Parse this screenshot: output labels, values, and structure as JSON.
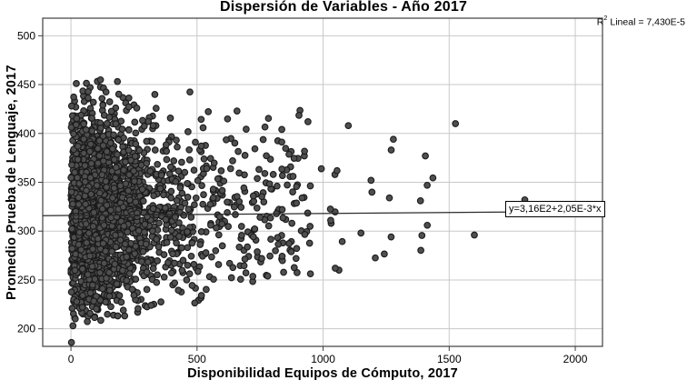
{
  "chart_data": {
    "type": "scatter",
    "title": "Dispersión de Variables - Año 2017",
    "xlabel": "Disponibilidad Equipos de Cómputo, 2017",
    "ylabel": "Promedio Prueba de Lenguaje, 2017",
    "x_ticks": [
      0,
      500,
      1000,
      1500,
      2000
    ],
    "y_ticks": [
      200,
      250,
      300,
      350,
      400,
      450,
      500
    ],
    "xlim": [
      -112,
      2108
    ],
    "ylim": [
      182,
      518
    ],
    "grid": true,
    "legend": "none",
    "marker": {
      "fill": "#4f4f4f",
      "stroke": "#1a1a1a",
      "radius": 3.3,
      "stroke_width": 1.1
    },
    "grid_color": "#c8c8c8",
    "frame_color": "#3f3f3f",
    "line_color": "#2b2b2b",
    "regression": {
      "intercept": 316,
      "slope": 0.00205,
      "equation_label": "y=3,16E2+2,05E-3*x"
    },
    "r2_annotation": {
      "prefix": "R",
      "sup": "2",
      "suffix": " Lineal = 7,430E-5"
    },
    "points": {
      "note": "Dense unlabeled cloud of ~2500 observations concentrated at x<300, y 230-430; spread narrows as x grows. Reproduced via seeded generator; distinctive isolated points listed in outliers.",
      "generator": {
        "seed": 2017,
        "count": 2500,
        "x_mixture": [
          {
            "w": 0.62,
            "type": "halfnormal",
            "sigma": 125,
            "min": 0,
            "max": 520
          },
          {
            "w": 0.27,
            "type": "exponential",
            "shift": 40,
            "mean": 200,
            "max": 1460
          },
          {
            "w": 0.104,
            "type": "uniform",
            "min": 250,
            "max": 950
          },
          {
            "w": 0.006,
            "type": "uniform",
            "min": 950,
            "max": 1460
          }
        ],
        "y": {
          "mean": 317,
          "sd": 50,
          "floor_base": 203,
          "floor_slope": 0.045,
          "ceil_base": 462,
          "ceil_slope": 0.04
        }
      },
      "outliers": [
        [
          1525,
          410
        ],
        [
          1800,
          332
        ],
        [
          1600,
          296
        ],
        [
          1413,
          306
        ],
        [
          1386,
          331
        ],
        [
          1270,
          383
        ],
        [
          1263,
          334
        ],
        [
          1100,
          408
        ],
        [
          1190,
          352
        ],
        [
          1048,
          262
        ],
        [
          1150,
          298
        ],
        [
          940,
          412
        ],
        [
          8,
          203
        ],
        [
          2,
          186
        ]
      ]
    }
  }
}
